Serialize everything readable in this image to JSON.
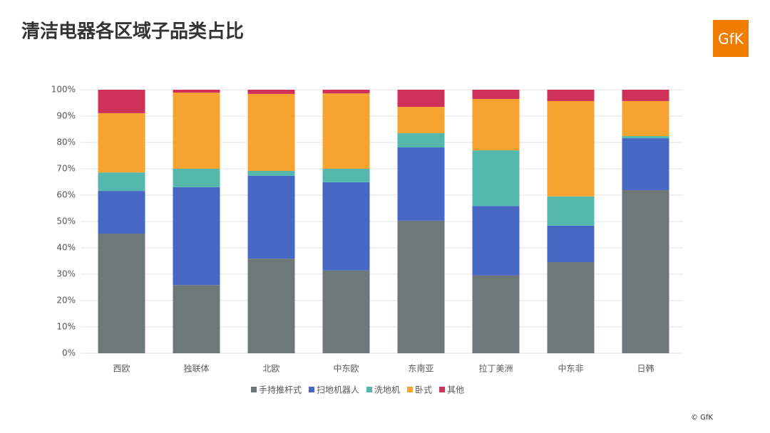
{
  "chart_data": {
    "type": "stacked_bar",
    "title": "清洁电器各区域子品类占比",
    "categories": [
      "西欧",
      "独联体",
      "北欧",
      "中东欧",
      "东南亚",
      "拉丁美洲",
      "中东非",
      "日韩"
    ],
    "series": [
      {
        "name": "手持推杆式",
        "color": "#6e7878",
        "values": [
          45.4,
          25.9,
          35.9,
          31.4,
          50.3,
          29.5,
          34.6,
          61.9
        ]
      },
      {
        "name": "扫地机器人",
        "color": "#4767c4",
        "values": [
          16.2,
          37.1,
          31.4,
          33.5,
          27.8,
          26.4,
          13.8,
          19.7
        ]
      },
      {
        "name": "洗地机",
        "color": "#55b8ad",
        "values": [
          7.0,
          7.0,
          1.9,
          5.1,
          5.4,
          21.1,
          11.1,
          0.8
        ]
      },
      {
        "name": "卧式",
        "color": "#f6a32f",
        "values": [
          22.5,
          28.9,
          29.2,
          28.6,
          10.0,
          19.5,
          36.2,
          13.3
        ]
      },
      {
        "name": "其他",
        "color": "#d0315a",
        "values": [
          8.9,
          1.1,
          1.6,
          1.4,
          6.5,
          3.5,
          4.3,
          4.3
        ]
      }
    ],
    "ylim": [
      0,
      100
    ],
    "yticks": [
      {
        "value": 0,
        "label": "0%"
      },
      {
        "value": 10,
        "label": "10%"
      },
      {
        "value": 20,
        "label": "20%"
      },
      {
        "value": 30,
        "label": "30%"
      },
      {
        "value": 40,
        "label": "40%"
      },
      {
        "value": 50,
        "label": "50%"
      },
      {
        "value": 60,
        "label": "60%"
      },
      {
        "value": 70,
        "label": "70%"
      },
      {
        "value": 80,
        "label": "80%"
      },
      {
        "value": 90,
        "label": "90%"
      },
      {
        "value": 100,
        "label": "100%"
      }
    ],
    "grid": true,
    "legend": "bottom"
  },
  "logo": "GfK",
  "footer": "© GfK"
}
